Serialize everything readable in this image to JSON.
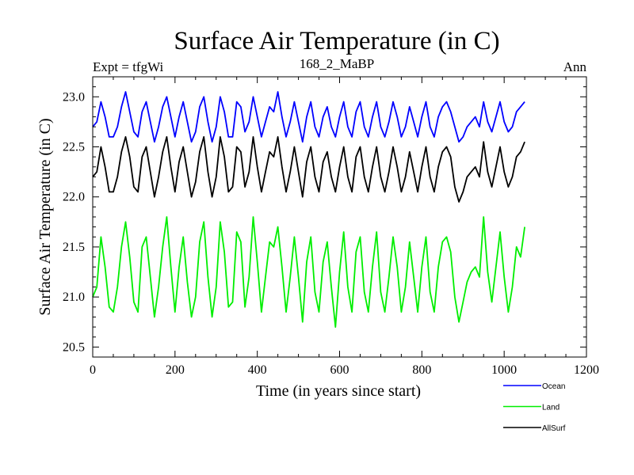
{
  "chart_data": {
    "type": "line",
    "title": "Surface Air Temperature (in C)",
    "subtitle_left": "Expt = tfgWi",
    "subtitle_center": "168_2_MaBP",
    "subtitle_right": "Ann",
    "xlabel": "Time (in years since start)",
    "ylabel": "Surface Air Temperature (in C)",
    "xlim": [
      0,
      1200
    ],
    "ylim": [
      20.4,
      23.2
    ],
    "xticks": [
      0,
      200,
      400,
      600,
      800,
      1000,
      1200
    ],
    "xtick_labels": [
      "0",
      "200",
      "400",
      "600",
      "800",
      "1000",
      "1200"
    ],
    "yticks": [
      20.5,
      21.0,
      21.5,
      22.0,
      22.5,
      23.0
    ],
    "ytick_labels": [
      "20.5",
      "21.0",
      "21.5",
      "22.0",
      "22.5",
      "23.0"
    ],
    "legend_position": "bottom-right-outside",
    "x_start": 0,
    "x_step": 10,
    "series": [
      {
        "name": "Ocean",
        "color": "#0000ff",
        "values": [
          22.7,
          22.75,
          22.95,
          22.8,
          22.6,
          22.6,
          22.7,
          22.9,
          23.05,
          22.85,
          22.65,
          22.6,
          22.85,
          22.95,
          22.75,
          22.55,
          22.7,
          22.9,
          23.0,
          22.8,
          22.6,
          22.8,
          22.95,
          22.75,
          22.55,
          22.65,
          22.9,
          23.0,
          22.75,
          22.55,
          22.7,
          23.0,
          22.85,
          22.6,
          22.6,
          22.95,
          22.9,
          22.65,
          22.75,
          23.0,
          22.8,
          22.6,
          22.75,
          22.9,
          22.85,
          23.05,
          22.8,
          22.6,
          22.75,
          22.95,
          22.75,
          22.55,
          22.8,
          22.95,
          22.7,
          22.6,
          22.8,
          22.9,
          22.7,
          22.6,
          22.8,
          22.95,
          22.7,
          22.6,
          22.85,
          22.95,
          22.7,
          22.6,
          22.8,
          22.95,
          22.7,
          22.6,
          22.75,
          22.95,
          22.8,
          22.6,
          22.7,
          22.9,
          22.75,
          22.6,
          22.8,
          22.95,
          22.7,
          22.6,
          22.8,
          22.9,
          22.95,
          22.85,
          22.7,
          22.55,
          22.6,
          22.7,
          22.75,
          22.8,
          22.7,
          22.95,
          22.75,
          22.65,
          22.8,
          22.95,
          22.75,
          22.65,
          22.7,
          22.85,
          22.9,
          22.95
        ]
      },
      {
        "name": "Land",
        "color": "#00ee00",
        "values": [
          21.0,
          21.1,
          21.6,
          21.3,
          20.9,
          20.85,
          21.1,
          21.5,
          21.75,
          21.4,
          20.95,
          20.85,
          21.5,
          21.6,
          21.2,
          20.8,
          21.1,
          21.5,
          21.8,
          21.3,
          20.85,
          21.3,
          21.6,
          21.15,
          20.8,
          21.0,
          21.55,
          21.75,
          21.2,
          20.8,
          21.1,
          21.75,
          21.45,
          20.9,
          20.95,
          21.65,
          21.55,
          20.9,
          21.2,
          21.8,
          21.35,
          20.85,
          21.2,
          21.55,
          21.5,
          21.7,
          21.3,
          20.85,
          21.2,
          21.6,
          21.2,
          20.75,
          21.35,
          21.6,
          21.05,
          20.85,
          21.35,
          21.55,
          21.1,
          20.7,
          21.25,
          21.65,
          21.1,
          20.85,
          21.45,
          21.6,
          21.05,
          20.85,
          21.3,
          21.65,
          21.05,
          20.85,
          21.2,
          21.6,
          21.3,
          20.85,
          21.1,
          21.55,
          21.2,
          20.85,
          21.3,
          21.6,
          21.05,
          20.85,
          21.3,
          21.55,
          21.6,
          21.45,
          21.0,
          20.75,
          20.95,
          21.15,
          21.25,
          21.3,
          21.2,
          21.8,
          21.25,
          20.95,
          21.3,
          21.65,
          21.2,
          20.85,
          21.1,
          21.5,
          21.4,
          21.7
        ]
      },
      {
        "name": "AllSurf",
        "color": "#000000",
        "values": [
          22.2,
          22.25,
          22.5,
          22.3,
          22.05,
          22.05,
          22.2,
          22.45,
          22.6,
          22.4,
          22.1,
          22.05,
          22.4,
          22.5,
          22.25,
          22.0,
          22.2,
          22.45,
          22.6,
          22.3,
          22.05,
          22.35,
          22.5,
          22.25,
          22.0,
          22.15,
          22.45,
          22.6,
          22.25,
          22.0,
          22.2,
          22.6,
          22.4,
          22.05,
          22.1,
          22.5,
          22.45,
          22.1,
          22.25,
          22.6,
          22.3,
          22.05,
          22.25,
          22.45,
          22.4,
          22.6,
          22.3,
          22.05,
          22.25,
          22.5,
          22.25,
          22.0,
          22.35,
          22.5,
          22.2,
          22.05,
          22.35,
          22.45,
          22.2,
          22.05,
          22.3,
          22.5,
          22.2,
          22.05,
          22.4,
          22.5,
          22.2,
          22.05,
          22.3,
          22.5,
          22.2,
          22.05,
          22.25,
          22.5,
          22.3,
          22.05,
          22.2,
          22.45,
          22.25,
          22.05,
          22.3,
          22.5,
          22.2,
          22.05,
          22.3,
          22.45,
          22.5,
          22.4,
          22.1,
          21.95,
          22.05,
          22.2,
          22.25,
          22.3,
          22.2,
          22.55,
          22.25,
          22.1,
          22.3,
          22.5,
          22.25,
          22.1,
          22.2,
          22.4,
          22.45,
          22.55
        ]
      }
    ]
  }
}
